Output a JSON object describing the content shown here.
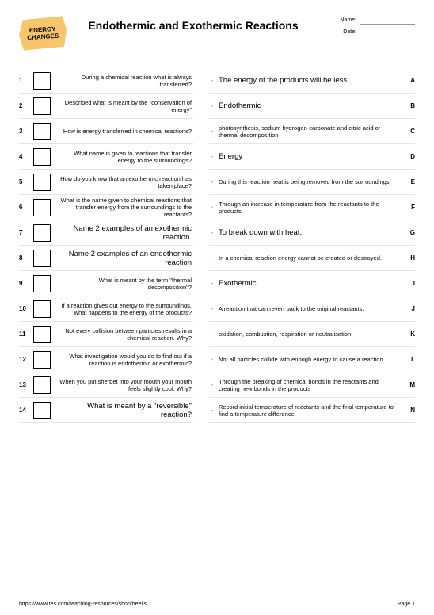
{
  "logo": {
    "line1": "ENERGY",
    "line2": "CHANGES"
  },
  "title": "Endothermic and Exothermic Reactions",
  "meta": {
    "name_label": "Name:",
    "date_label": "Date:"
  },
  "questions": [
    {
      "n": "1",
      "text": "During a chemical reaction what is always transferred?",
      "big": false
    },
    {
      "n": "2",
      "text": "Described what is meant by the \"conservation of energy\"",
      "big": false
    },
    {
      "n": "3",
      "text": "How is energy transferred in chemical reactions?",
      "big": false
    },
    {
      "n": "4",
      "text": "What name is given to reactions that transfer energy to the surroundings?",
      "big": false
    },
    {
      "n": "5",
      "text": "How do you know that an exothermic reaction has taken place?",
      "big": false
    },
    {
      "n": "6",
      "text": "What is the name given to chemical reactions that transfer energy from the surroundings to the reactants?",
      "big": false
    },
    {
      "n": "7",
      "text": "Name 2 examples of an exothermic reaction.",
      "big": true
    },
    {
      "n": "8",
      "text": "Name 2 examples of an endothermic reaction",
      "big": true
    },
    {
      "n": "9",
      "text": "What is meant by the term \"thermal decomposition\"?",
      "big": false
    },
    {
      "n": "10",
      "text": "If a reaction gives out energy to the surroundings, what happens to the energy of the products?",
      "big": false
    },
    {
      "n": "11",
      "text": "Not every collision between particles results in a chemical reaction. Why?",
      "big": false
    },
    {
      "n": "12",
      "text": "What investigation would you do to find out if a reaction is endothermic or exothermic?",
      "big": false
    },
    {
      "n": "13",
      "text": "When you put sherbet into your mouth your mouth feels slightly cool. Why?",
      "big": false
    },
    {
      "n": "14",
      "text": "What is meant by a \"reversible\" reaction?",
      "big": true
    }
  ],
  "answers": [
    {
      "l": "A",
      "text": "The energy of the products will be less.",
      "big": true
    },
    {
      "l": "B",
      "text": "Endothermic",
      "big": true
    },
    {
      "l": "C",
      "text": "photosynthesis, sodium hydrogen-carbonate and citric acid or thermal decomposition",
      "big": false
    },
    {
      "l": "D",
      "text": "Energy",
      "big": true
    },
    {
      "l": "E",
      "text": "During this reaction heat is being removed from the surroundings.",
      "big": false
    },
    {
      "l": "F",
      "text": "Through an increase in temperature from the reactants to the products.",
      "big": false
    },
    {
      "l": "G",
      "text": "To break down with heat.",
      "big": true
    },
    {
      "l": "H",
      "text": "In a chemical reaction energy cannot be created or destroyed.",
      "big": false
    },
    {
      "l": "I",
      "text": "Exothermic",
      "big": true
    },
    {
      "l": "J",
      "text": "A reaction that can revert back to the original reactants.",
      "big": false
    },
    {
      "l": "K",
      "text": "oxidation, combustion, respiration or neutralisation",
      "big": false
    },
    {
      "l": "L",
      "text": "Not all particles collide with enough energy to cause a reaction.",
      "big": false
    },
    {
      "l": "M",
      "text": "Through the breaking of chemical bonds in the reactants and creating new bonds in the products",
      "big": false
    },
    {
      "l": "N",
      "text": "Record initial temperature of reactants and the final temperature to find a temperature difference.",
      "big": false
    }
  ],
  "footer": {
    "url": "https://www.tes.com/teaching-resources/shop/heelis",
    "page": "Page 1"
  }
}
